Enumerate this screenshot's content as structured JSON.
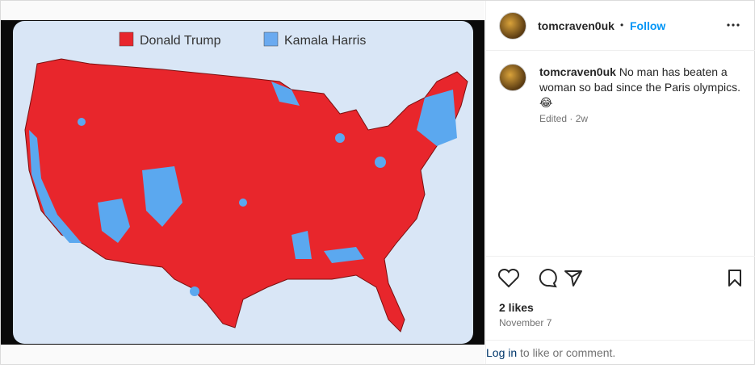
{
  "post": {
    "username": "tomcraven0uk",
    "separator": "•",
    "follow": "Follow",
    "image": {
      "legend": [
        "Donald Trump",
        "Kamala Harris"
      ]
    },
    "caption": {
      "username": "tomcraven0uk",
      "text": "No man has beaten a woman so bad since the Paris olympics. 😂",
      "meta": "Edited · 2w"
    },
    "likes": "2 likes",
    "date": "November 7",
    "login": {
      "link": "Log in",
      "text": "to like or comment."
    }
  }
}
